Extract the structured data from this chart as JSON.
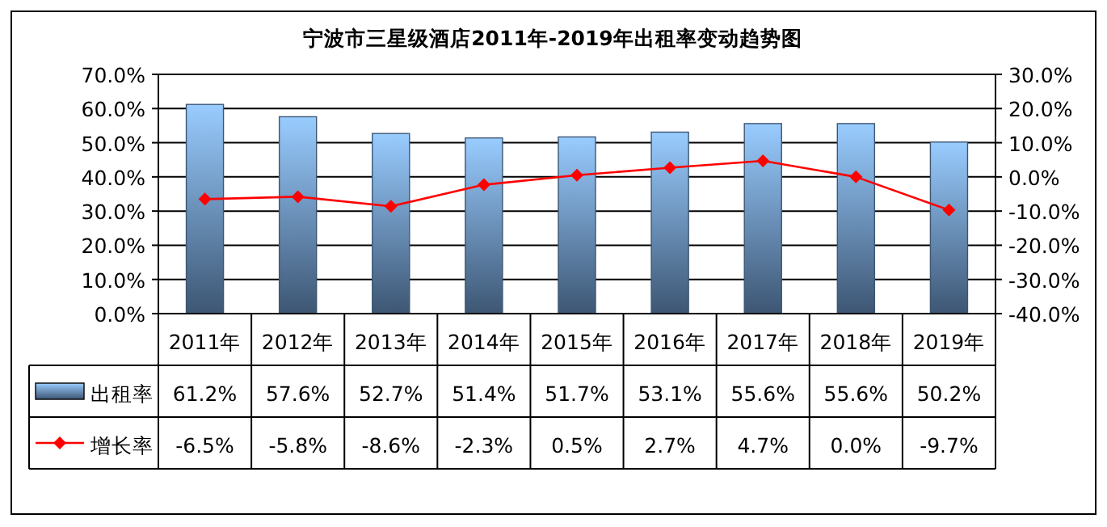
{
  "chart_data": {
    "type": "bar",
    "title": "宁波市三星级酒店2011年-2019年出租率变动趋势图",
    "categories": [
      "2011年",
      "2012年",
      "2013年",
      "2014年",
      "2015年",
      "2016年",
      "2017年",
      "2018年",
      "2019年"
    ],
    "series": [
      {
        "name": "出租率",
        "color": "#3d5673",
        "values": [
          61.2,
          57.6,
          52.7,
          51.4,
          51.7,
          53.1,
          55.6,
          55.6,
          50.2
        ],
        "value_labels": [
          "61.2%",
          "57.6%",
          "52.7%",
          "51.4%",
          "51.7%",
          "53.1%",
          "55.6%",
          "55.6%",
          "50.2%"
        ]
      },
      {
        "name": "增长率",
        "type": "line",
        "axis": "y2",
        "color": "#ff0000",
        "marker": "diamond",
        "values": [
          -6.5,
          -5.8,
          -8.6,
          -2.3,
          0.5,
          2.7,
          4.7,
          0.0,
          -9.7
        ],
        "value_labels": [
          "-6.5%",
          "-5.8%",
          "-8.6%",
          "-2.3%",
          "0.5%",
          "2.7%",
          "4.7%",
          "0.0%",
          "-9.7%"
        ]
      }
    ],
    "ylim": [
      0,
      70
    ],
    "yticks": [
      {
        "value": 0,
        "label": "0.0%"
      },
      {
        "value": 10,
        "label": "10.0%"
      },
      {
        "value": 20,
        "label": "20.0%"
      },
      {
        "value": 30,
        "label": "30.0%"
      },
      {
        "value": 40,
        "label": "40.0%"
      },
      {
        "value": 50,
        "label": "50.0%"
      },
      {
        "value": 60,
        "label": "60.0%"
      },
      {
        "value": 70,
        "label": "70.0%"
      }
    ],
    "y2lim": [
      -40,
      30
    ],
    "y2ticks": [
      {
        "value": -40,
        "label": "-40.0%"
      },
      {
        "value": -30,
        "label": "-30.0%"
      },
      {
        "value": -20,
        "label": "-20.0%"
      },
      {
        "value": -10,
        "label": "-10.0%"
      },
      {
        "value": 0,
        "label": "0.0%"
      },
      {
        "value": 10,
        "label": "10.0%"
      },
      {
        "value": 20,
        "label": "20.0%"
      },
      {
        "value": 30,
        "label": "30.0%"
      }
    ],
    "grid": "y",
    "legend": "left"
  }
}
